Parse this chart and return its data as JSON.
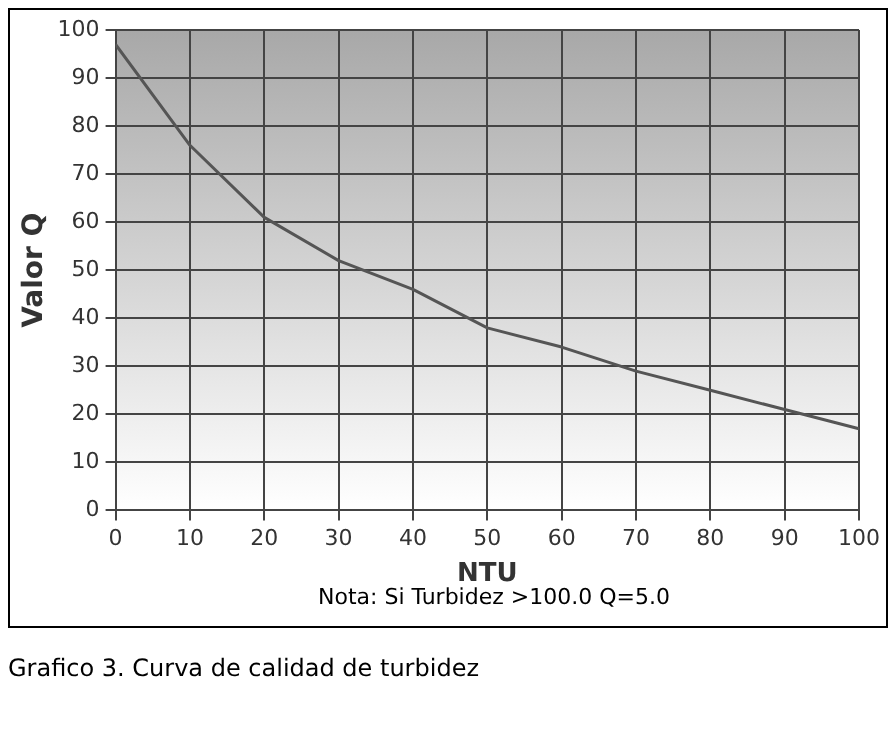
{
  "chart_data": {
    "type": "line",
    "xlabel": "NTU",
    "ylabel": "Valor Q",
    "x": [
      0,
      10,
      20,
      30,
      40,
      50,
      60,
      70,
      80,
      90,
      100
    ],
    "series": [
      {
        "color": "#555555",
        "values": [
          97,
          76,
          61,
          52,
          46,
          38,
          34,
          29,
          25,
          21,
          17
        ]
      }
    ],
    "xlim": [
      0,
      100
    ],
    "xticks": [
      0,
      10,
      20,
      30,
      40,
      50,
      60,
      70,
      80,
      90,
      100
    ],
    "ylim": [
      0,
      100
    ],
    "yticks": [
      0,
      10,
      20,
      30,
      40,
      50,
      60,
      70,
      80,
      90,
      100
    ],
    "grid": true,
    "legend": false,
    "marker": "none",
    "line_style": "solid",
    "annotations": [
      "Nota: Si Turbidez >100.0  Q=5.0",
      "Grafico 3. Curva de calidad de turbidez"
    ]
  }
}
